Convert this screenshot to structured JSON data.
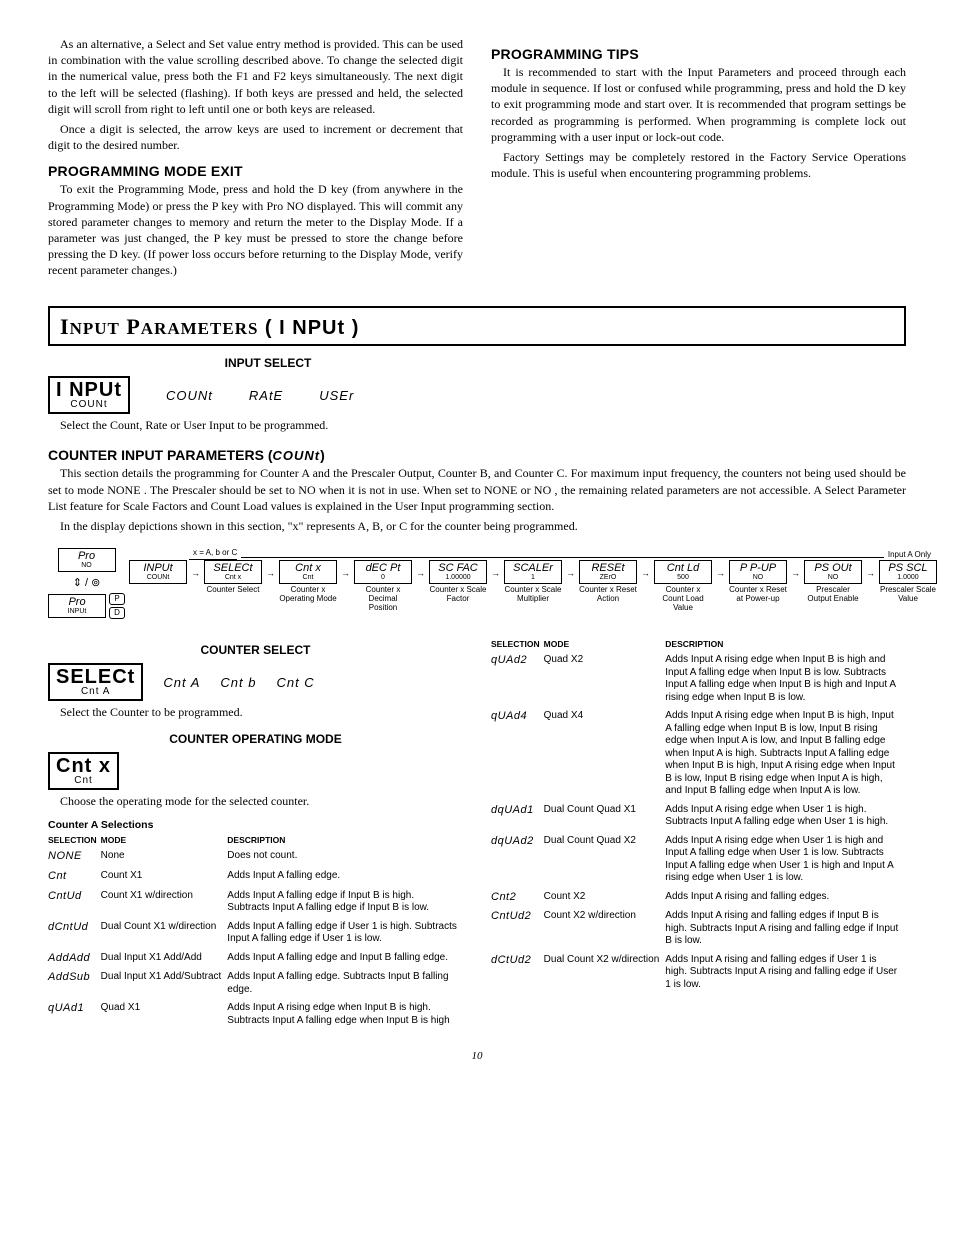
{
  "top": {
    "left": {
      "para1": "As an alternative, a Select and Set value entry method is provided. This can be used in combination with the value scrolling described above. To change the selected digit in the numerical value, press both the F1 and F2 keys simultaneously. The next digit to the left will be selected (flashing). If both keys are pressed and held, the selected digit will scroll from right to left until one or both keys are released.",
      "para2": "Once a digit is selected, the arrow keys are used to increment or decrement that digit to the desired number.",
      "exit_head": "PROGRAMMING MODE EXIT",
      "exit_body": "To exit the Programming Mode, press and hold the D key (from anywhere in the Programming Mode) or press the P key with Pro NO displayed. This will commit any stored parameter changes to memory and return the meter to the Display Mode. If a parameter was just changed, the P key must be pressed to store the change before pressing the D key. (If power loss occurs before returning to the Display Mode, verify recent parameter changes.)"
    },
    "right": {
      "tips_head": "PROGRAMMING TIPS",
      "tips_p1": "It is recommended to start with the Input Parameters and proceed through each module in sequence. If lost or confused while programming, press and hold the D key to exit programming mode and start over. It is recommended that program settings be recorded as programming is performed. When programming is complete lock out programming with a user input or lock-out code.",
      "tips_p2": "Factory Settings may be completely restored in the Factory Service Operations module. This is useful when encountering programming problems."
    }
  },
  "panel_title_a": "I",
  "panel_title_b": "NPUT",
  "panel_title_c": "P",
  "panel_title_d": "ARAMETERS",
  "panel_seg": "( I NPUt )",
  "input_select": {
    "label": "INPUT SELECT",
    "box_big": "I NPUt",
    "box_small": "COUNt",
    "opts": [
      "COUNt",
      "RAtE",
      "USEr"
    ],
    "note": "Select the Count, Rate or User Input to be programmed."
  },
  "counter_head": "COUNTER INPUT PARAMETERS (",
  "counter_head_seg": "COUNt",
  "counter_head_close": ")",
  "counter_para": "This section details the programming for Counter A and the Prescaler Output, Counter B, and Counter C. For maximum input frequency, the counters not being used should be set to mode NONE . The Prescaler should be set to NO when it is not in use. When set to NONE or NO , the remaining related parameters are not accessible. A Select Parameter List feature for Scale Factors and Count Load values is explained in the User Input programming section.",
  "counter_para2": "In the display depictions shown in this section, \"x\" represents A, B, or C for the counter being programmed.",
  "flow": {
    "left_nodes": [
      {
        "top": "Pro",
        "bot": "NO"
      },
      {
        "top": "Pro",
        "bot": "INPUt"
      }
    ],
    "xnote": "x = A, b or C",
    "input_a_only": "Input A Only",
    "steps": [
      {
        "t": "INPUt",
        "b": "COUNt",
        "cap": ""
      },
      {
        "t": "SELECt",
        "b": "Cnt x",
        "cap": "Counter Select"
      },
      {
        "t": "Cnt x",
        "b": "Cnt",
        "cap": "Counter x Operating Mode"
      },
      {
        "t": "dEC Pt",
        "b": "0",
        "cap": "Counter x Decimal Position"
      },
      {
        "t": "SC FAC",
        "b": "1.00000",
        "cap": "Counter x Scale Factor"
      },
      {
        "t": "SCALEr",
        "b": "1",
        "cap": "Counter x Scale Multiplier"
      },
      {
        "t": "RESEt",
        "b": "ZErO",
        "cap": "Counter x Reset Action"
      },
      {
        "t": "Cnt Ld",
        "b": "500",
        "cap": "Counter x Count Load Value"
      },
      {
        "t": "P P-UP",
        "b": "NO",
        "cap": "Counter x Reset at Power-up"
      },
      {
        "t": "PS OUt",
        "b": "NO",
        "cap": "Prescaler Output Enable"
      },
      {
        "t": "PS SCL",
        "b": "1.0000",
        "cap": "Prescaler Scale Value"
      }
    ]
  },
  "counter_select": {
    "label": "COUNTER SELECT",
    "box_big": "SELECt",
    "box_small": "Cnt A",
    "opts": [
      "Cnt A",
      "Cnt b",
      "Cnt C"
    ],
    "note": "Select the Counter to be programmed."
  },
  "counter_op": {
    "label": "COUNTER OPERATING MODE",
    "box_big": "Cnt  x",
    "box_small": "Cnt",
    "note": "Choose the operating mode for the selected counter."
  },
  "tableA": {
    "title": "Counter A Selections",
    "headers": [
      "SELECTION",
      "MODE",
      "DESCRIPTION"
    ],
    "rows": [
      [
        "NONE",
        "None",
        "Does not count."
      ],
      [
        "Cnt",
        "Count X1",
        "Adds Input A falling edge."
      ],
      [
        "CntUd",
        "Count X1 w/direction",
        "Adds Input A falling edge if Input B is high. Subtracts Input A falling edge if Input B is low."
      ],
      [
        "dCntUd",
        "Dual Count X1 w/direction",
        "Adds Input A falling edge if User 1 is high. Subtracts Input A falling edge if User 1 is low."
      ],
      [
        "AddAdd",
        "Dual Input X1 Add/Add",
        "Adds Input A falling edge and Input B falling edge."
      ],
      [
        "AddSub",
        "Dual Input X1 Add/Subtract",
        "Adds Input A falling edge. Subtracts Input B falling edge."
      ],
      [
        "qUAd1",
        "Quad X1",
        "Adds Input A rising edge when Input B is high. Subtracts Input A falling edge when Input B is high"
      ]
    ]
  },
  "tableB": {
    "headers": [
      "SELECTION",
      "MODE",
      "DESCRIPTION"
    ],
    "rows": [
      [
        "qUAd2",
        "Quad X2",
        "Adds Input A rising edge when Input B is high and Input A falling edge when Input B is low. Subtracts Input A falling edge when Input B is high and Input A rising edge when Input B is low."
      ],
      [
        "qUAd4",
        "Quad X4",
        "Adds Input A rising edge when Input B is high, Input A falling edge when Input B is low, Input B rising edge when Input A is low, and Input B falling edge when Input A is high. Subtracts Input A falling edge when Input B is high, Input A rising edge when Input B is low, Input B rising edge when Input A is high, and Input B falling edge when Input A is low."
      ],
      [
        "dqUAd1",
        "Dual Count Quad X1",
        "Adds Input A rising edge when User 1 is high. Subtracts Input A falling edge when User 1 is high."
      ],
      [
        "dqUAd2",
        "Dual Count Quad X2",
        "Adds Input A rising edge when User 1 is high and Input A falling edge when User 1 is low. Subtracts Input A falling edge when User 1 is high and Input A rising edge when User 1 is low."
      ],
      [
        "Cnt2",
        "Count X2",
        "Adds Input A rising and falling edges."
      ],
      [
        "CntUd2",
        "Count X2 w/direction",
        "Adds Input A rising and falling edges if Input B is high. Subtracts Input A rising and falling edge if Input B is low."
      ],
      [
        "dCtUd2",
        "Dual Count X2 w/direction",
        "Adds Input A rising and falling edges if User 1 is high. Subtracts Input A rising and falling edge if User 1 is low."
      ]
    ]
  },
  "page": "10"
}
